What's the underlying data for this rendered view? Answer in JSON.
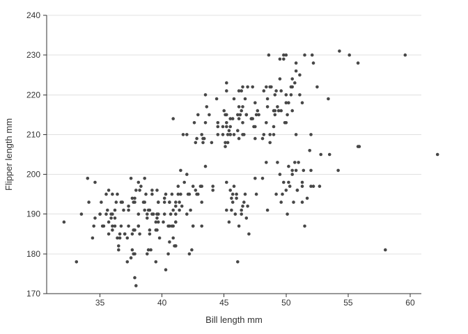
{
  "chart_data": {
    "type": "scatter",
    "title": "",
    "xlabel": "Bill length mm",
    "ylabel": "Flipper length mm",
    "x_ticks": [
      35,
      40,
      45,
      50,
      55,
      60
    ],
    "y_ticks": [
      170,
      180,
      190,
      200,
      210,
      220,
      230,
      240
    ],
    "xlim": [
      30.7,
      60.9
    ],
    "ylim": [
      170,
      240
    ],
    "grid": "horizontal-only",
    "legend": "none",
    "point_color": "#474747",
    "grid_color": "#e0e0e0",
    "axis_color": "#333333",
    "points": [
      [
        39.1,
        181
      ],
      [
        39.5,
        186
      ],
      [
        40.3,
        195
      ],
      [
        36.7,
        193
      ],
      [
        39.3,
        190
      ],
      [
        38.9,
        181
      ],
      [
        39.2,
        195
      ],
      [
        34.1,
        193
      ],
      [
        42.0,
        190
      ],
      [
        37.8,
        186
      ],
      [
        37.8,
        180
      ],
      [
        41.1,
        182
      ],
      [
        38.6,
        191
      ],
      [
        34.6,
        198
      ],
      [
        36.6,
        185
      ],
      [
        38.7,
        195
      ],
      [
        42.5,
        197
      ],
      [
        34.4,
        184
      ],
      [
        46.0,
        194
      ],
      [
        37.8,
        174
      ],
      [
        37.7,
        180
      ],
      [
        35.9,
        189
      ],
      [
        38.2,
        185
      ],
      [
        38.8,
        180
      ],
      [
        35.3,
        187
      ],
      [
        40.6,
        183
      ],
      [
        40.5,
        187
      ],
      [
        37.9,
        172
      ],
      [
        40.5,
        180
      ],
      [
        39.5,
        178
      ],
      [
        37.2,
        178
      ],
      [
        39.5,
        188
      ],
      [
        40.9,
        184
      ],
      [
        36.4,
        195
      ],
      [
        39.2,
        196
      ],
      [
        38.8,
        190
      ],
      [
        42.2,
        180
      ],
      [
        37.6,
        181
      ],
      [
        39.8,
        184
      ],
      [
        36.5,
        182
      ],
      [
        40.8,
        195
      ],
      [
        36.0,
        186
      ],
      [
        44.1,
        196
      ],
      [
        37.0,
        185
      ],
      [
        39.6,
        190
      ],
      [
        41.1,
        182
      ],
      [
        37.5,
        179
      ],
      [
        36.0,
        190
      ],
      [
        42.3,
        191
      ],
      [
        39.6,
        186
      ],
      [
        40.1,
        188
      ],
      [
        35.0,
        190
      ],
      [
        42.0,
        200
      ],
      [
        34.5,
        187
      ],
      [
        41.4,
        191
      ],
      [
        39.0,
        186
      ],
      [
        40.6,
        193
      ],
      [
        36.5,
        181
      ],
      [
        37.6,
        194
      ],
      [
        35.7,
        185
      ],
      [
        41.3,
        195
      ],
      [
        37.6,
        185
      ],
      [
        41.1,
        192
      ],
      [
        36.4,
        184
      ],
      [
        41.6,
        192
      ],
      [
        35.5,
        195
      ],
      [
        41.1,
        188
      ],
      [
        35.9,
        190
      ],
      [
        41.8,
        198
      ],
      [
        33.5,
        190
      ],
      [
        39.7,
        190
      ],
      [
        39.6,
        196
      ],
      [
        45.8,
        197
      ],
      [
        35.5,
        190
      ],
      [
        42.8,
        195
      ],
      [
        40.9,
        191
      ],
      [
        37.2,
        184
      ],
      [
        36.2,
        187
      ],
      [
        42.1,
        195
      ],
      [
        34.6,
        189
      ],
      [
        42.9,
        195
      ],
      [
        36.7,
        187
      ],
      [
        35.1,
        193
      ],
      [
        37.3,
        191
      ],
      [
        41.3,
        197
      ],
      [
        36.3,
        193
      ],
      [
        36.9,
        191
      ],
      [
        38.3,
        197
      ],
      [
        38.9,
        191
      ],
      [
        35.7,
        196
      ],
      [
        41.1,
        188
      ],
      [
        34.0,
        199
      ],
      [
        39.6,
        189
      ],
      [
        36.2,
        189
      ],
      [
        40.8,
        187
      ],
      [
        38.1,
        198
      ],
      [
        40.3,
        176
      ],
      [
        33.1,
        178
      ],
      [
        43.2,
        197
      ],
      [
        35.0,
        190
      ],
      [
        41.0,
        182
      ],
      [
        37.7,
        193
      ],
      [
        37.8,
        194
      ],
      [
        37.9,
        196
      ],
      [
        39.7,
        188
      ],
      [
        38.6,
        199
      ],
      [
        38.2,
        196
      ],
      [
        38.1,
        190
      ],
      [
        43.2,
        193
      ],
      [
        38.1,
        187
      ],
      [
        45.6,
        191
      ],
      [
        39.7,
        193
      ],
      [
        42.2,
        195
      ],
      [
        39.6,
        190
      ],
      [
        42.7,
        196
      ],
      [
        38.6,
        193
      ],
      [
        37.3,
        187
      ],
      [
        35.7,
        188
      ],
      [
        41.1,
        190
      ],
      [
        36.2,
        191
      ],
      [
        37.7,
        186
      ],
      [
        40.2,
        193
      ],
      [
        41.4,
        193
      ],
      [
        35.2,
        187
      ],
      [
        40.6,
        193
      ],
      [
        38.8,
        189
      ],
      [
        41.5,
        195
      ],
      [
        39.0,
        191
      ],
      [
        44.1,
        197
      ],
      [
        38.5,
        193
      ],
      [
        43.1,
        197
      ],
      [
        36.8,
        193
      ],
      [
        37.5,
        199
      ],
      [
        38.1,
        187
      ],
      [
        41.1,
        193
      ],
      [
        35.6,
        191
      ],
      [
        40.2,
        194
      ],
      [
        37.0,
        185
      ],
      [
        39.7,
        193
      ],
      [
        40.2,
        190
      ],
      [
        40.6,
        187
      ],
      [
        32.1,
        188
      ],
      [
        40.7,
        190
      ],
      [
        37.3,
        192
      ],
      [
        39.0,
        185
      ],
      [
        39.2,
        190
      ],
      [
        36.6,
        184
      ],
      [
        36.0,
        195
      ],
      [
        37.8,
        193
      ],
      [
        36.0,
        187
      ],
      [
        41.5,
        201
      ],
      [
        46.1,
        211
      ],
      [
        50.0,
        230
      ],
      [
        48.7,
        210
      ],
      [
        50.0,
        218
      ],
      [
        47.6,
        215
      ],
      [
        46.5,
        210
      ],
      [
        45.4,
        211
      ],
      [
        46.7,
        219
      ],
      [
        43.3,
        209
      ],
      [
        46.8,
        215
      ],
      [
        40.9,
        214
      ],
      [
        49.0,
        216
      ],
      [
        45.5,
        214
      ],
      [
        48.4,
        213
      ],
      [
        45.8,
        210
      ],
      [
        49.3,
        217
      ],
      [
        42.0,
        210
      ],
      [
        49.2,
        221
      ],
      [
        46.2,
        209
      ],
      [
        48.7,
        222
      ],
      [
        50.2,
        218
      ],
      [
        45.1,
        215
      ],
      [
        46.5,
        213
      ],
      [
        46.3,
        215
      ],
      [
        42.9,
        215
      ],
      [
        46.1,
        215
      ],
      [
        44.5,
        213
      ],
      [
        47.8,
        215
      ],
      [
        48.2,
        210
      ],
      [
        50.0,
        220
      ],
      [
        47.3,
        222
      ],
      [
        42.8,
        209
      ],
      [
        45.1,
        207
      ],
      [
        59.6,
        230
      ],
      [
        49.1,
        220
      ],
      [
        48.4,
        222
      ],
      [
        42.6,
        213
      ],
      [
        44.4,
        219
      ],
      [
        44.0,
        208
      ],
      [
        48.7,
        208
      ],
      [
        42.7,
        208
      ],
      [
        49.6,
        221
      ],
      [
        45.3,
        210
      ],
      [
        49.6,
        216
      ],
      [
        50.5,
        222
      ],
      [
        43.6,
        217
      ],
      [
        45.5,
        210
      ],
      [
        50.5,
        224
      ],
      [
        44.9,
        212
      ],
      [
        45.2,
        221
      ],
      [
        46.6,
        210
      ],
      [
        48.5,
        219
      ],
      [
        45.1,
        208
      ],
      [
        50.1,
        215
      ],
      [
        46.5,
        222
      ],
      [
        45.0,
        216
      ],
      [
        43.8,
        215
      ],
      [
        45.5,
        210
      ],
      [
        43.2,
        210
      ],
      [
        50.4,
        220
      ],
      [
        45.3,
        208
      ],
      [
        46.2,
        221
      ],
      [
        45.7,
        214
      ],
      [
        54.3,
        231
      ],
      [
        45.8,
        219
      ],
      [
        49.8,
        230
      ],
      [
        46.2,
        214
      ],
      [
        49.5,
        229
      ],
      [
        43.5,
        220
      ],
      [
        50.7,
        223
      ],
      [
        47.7,
        216
      ],
      [
        46.4,
        221
      ],
      [
        48.2,
        221
      ],
      [
        46.5,
        217
      ],
      [
        46.4,
        216
      ],
      [
        48.6,
        230
      ],
      [
        47.5,
        209
      ],
      [
        51.1,
        220
      ],
      [
        45.2,
        215
      ],
      [
        45.2,
        213
      ],
      [
        49.1,
        215
      ],
      [
        52.5,
        222
      ],
      [
        47.4,
        212
      ],
      [
        50.0,
        213
      ],
      [
        44.9,
        210
      ],
      [
        50.8,
        228
      ],
      [
        43.4,
        209
      ],
      [
        51.3,
        218
      ],
      [
        47.5,
        212
      ],
      [
        52.1,
        230
      ],
      [
        47.5,
        218
      ],
      [
        52.2,
        228
      ],
      [
        45.5,
        212
      ],
      [
        49.5,
        224
      ],
      [
        44.5,
        212
      ],
      [
        50.8,
        226
      ],
      [
        49.4,
        216
      ],
      [
        46.9,
        222
      ],
      [
        48.4,
        203
      ],
      [
        51.1,
        225
      ],
      [
        48.5,
        217
      ],
      [
        55.9,
        207
      ],
      [
        47.2,
        214
      ],
      [
        49.1,
        216
      ],
      [
        47.3,
        214
      ],
      [
        46.8,
        215
      ],
      [
        41.7,
        210
      ],
      [
        53.4,
        219
      ],
      [
        43.3,
        208
      ],
      [
        48.1,
        209
      ],
      [
        50.5,
        216
      ],
      [
        49.8,
        229
      ],
      [
        43.5,
        213
      ],
      [
        51.5,
        230
      ],
      [
        46.2,
        217
      ],
      [
        55.1,
        230
      ],
      [
        44.5,
        210
      ],
      [
        48.8,
        222
      ],
      [
        47.2,
        214
      ],
      [
        46.8,
        215
      ],
      [
        50.4,
        222
      ],
      [
        45.2,
        212
      ],
      [
        49.9,
        213
      ],
      [
        46.5,
        192
      ],
      [
        50.0,
        196
      ],
      [
        51.3,
        193
      ],
      [
        45.4,
        188
      ],
      [
        52.7,
        197
      ],
      [
        45.2,
        198
      ],
      [
        46.1,
        178
      ],
      [
        51.3,
        197
      ],
      [
        46.0,
        195
      ],
      [
        51.3,
        198
      ],
      [
        46.6,
        193
      ],
      [
        51.7,
        194
      ],
      [
        47.0,
        185
      ],
      [
        52.0,
        201
      ],
      [
        45.9,
        190
      ],
      [
        50.5,
        201
      ],
      [
        50.3,
        197
      ],
      [
        58.0,
        181
      ],
      [
        46.4,
        190
      ],
      [
        49.2,
        195
      ],
      [
        42.4,
        181
      ],
      [
        48.5,
        191
      ],
      [
        43.2,
        187
      ],
      [
        50.6,
        193
      ],
      [
        46.7,
        195
      ],
      [
        52.0,
        197
      ],
      [
        50.5,
        200
      ],
      [
        49.5,
        200
      ],
      [
        46.4,
        191
      ],
      [
        52.8,
        205
      ],
      [
        40.9,
        187
      ],
      [
        54.2,
        201
      ],
      [
        42.5,
        187
      ],
      [
        51.0,
        203
      ],
      [
        49.7,
        195
      ],
      [
        47.5,
        199
      ],
      [
        47.6,
        195
      ],
      [
        52.0,
        210
      ],
      [
        46.9,
        192
      ],
      [
        53.5,
        205
      ],
      [
        49.0,
        210
      ],
      [
        46.2,
        187
      ],
      [
        50.9,
        196
      ],
      [
        45.5,
        196
      ],
      [
        50.9,
        196
      ],
      [
        50.8,
        201
      ],
      [
        50.1,
        190
      ],
      [
        49.0,
        212
      ],
      [
        51.5,
        187
      ],
      [
        49.8,
        198
      ],
      [
        48.1,
        199
      ],
      [
        51.4,
        201
      ],
      [
        45.7,
        193
      ],
      [
        50.7,
        203
      ],
      [
        42.5,
        187
      ],
      [
        52.2,
        197
      ],
      [
        45.2,
        191
      ],
      [
        49.3,
        203
      ],
      [
        50.2,
        202
      ],
      [
        45.6,
        194
      ],
      [
        51.9,
        206
      ],
      [
        46.8,
        189
      ],
      [
        45.7,
        195
      ],
      [
        55.8,
        207
      ],
      [
        43.5,
        202
      ],
      [
        49.6,
        193
      ],
      [
        50.8,
        210
      ],
      [
        50.2,
        198
      ],
      [
        45.2,
        223
      ],
      [
        55.8,
        228
      ],
      [
        62.2,
        205
      ]
    ]
  }
}
